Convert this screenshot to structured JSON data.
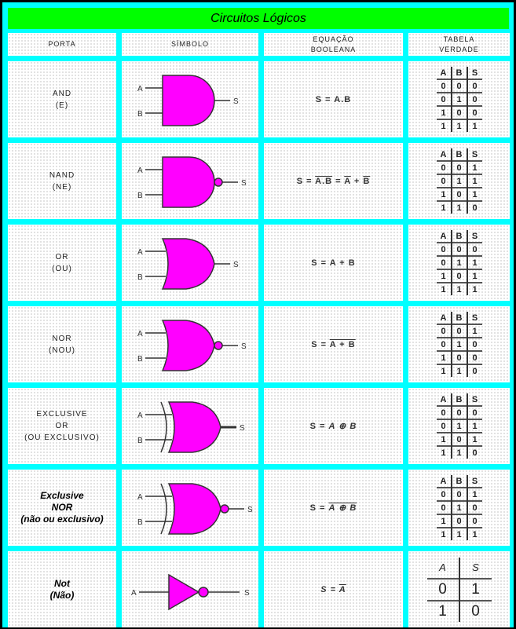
{
  "title": "Circuitos Lógicos",
  "headers": [
    "PORTA",
    "SÍMBOLO",
    "EQUAÇÃO\nBOOLEANA",
    "TABELA\nVERDADE"
  ],
  "colors": {
    "frame": "#00ffff",
    "title_bar": "#00ff00",
    "gate_fill": "#ff00ff"
  },
  "gates": [
    {
      "name": [
        "AND",
        "(E)"
      ],
      "type": "and",
      "inputs": [
        "A",
        "B"
      ],
      "output": "S",
      "equation": [
        {
          "t": "S = A.B"
        }
      ],
      "table": [
        [
          "A",
          "B",
          "S"
        ],
        [
          "0",
          "0",
          "0"
        ],
        [
          "0",
          "1",
          "0"
        ],
        [
          "1",
          "0",
          "0"
        ],
        [
          "1",
          "1",
          "1"
        ]
      ]
    },
    {
      "name": [
        "NAND",
        "(NE)"
      ],
      "type": "nand",
      "inputs": [
        "A",
        "B"
      ],
      "output": "S",
      "equation": [
        {
          "t": "S = "
        },
        {
          "t": "A.B",
          "o": true
        },
        {
          "t": " = "
        },
        {
          "t": "A",
          "o": true
        },
        {
          "t": " + "
        },
        {
          "t": "B",
          "o": true
        }
      ],
      "table": [
        [
          "A",
          "B",
          "S"
        ],
        [
          "0",
          "0",
          "1"
        ],
        [
          "0",
          "1",
          "1"
        ],
        [
          "1",
          "0",
          "1"
        ],
        [
          "1",
          "1",
          "0"
        ]
      ]
    },
    {
      "name": [
        "OR",
        "(OU)"
      ],
      "type": "or",
      "inputs": [
        "A",
        "B"
      ],
      "output": "S",
      "equation": [
        {
          "t": "S = A + B"
        }
      ],
      "table": [
        [
          "A",
          "B",
          "S"
        ],
        [
          "0",
          "0",
          "0"
        ],
        [
          "0",
          "1",
          "1"
        ],
        [
          "1",
          "0",
          "1"
        ],
        [
          "1",
          "1",
          "1"
        ]
      ]
    },
    {
      "name": [
        "NOR",
        "(NOU)"
      ],
      "type": "nor",
      "inputs": [
        "A",
        "B"
      ],
      "output": "S",
      "equation": [
        {
          "t": "S = "
        },
        {
          "t": "A + B",
          "o": true
        }
      ],
      "table": [
        [
          "A",
          "B",
          "S"
        ],
        [
          "0",
          "0",
          "1"
        ],
        [
          "0",
          "1",
          "0"
        ],
        [
          "1",
          "0",
          "0"
        ],
        [
          "1",
          "1",
          "0"
        ]
      ]
    },
    {
      "name": [
        "EXCLUSIVE",
        "OR",
        "(OU EXCLUSIVO)"
      ],
      "type": "xor",
      "inputs": [
        "A",
        "B"
      ],
      "output": "S",
      "equation": [
        {
          "t": "S = "
        },
        {
          "t": "A ⊕ B",
          "i": true
        }
      ],
      "table": [
        [
          "A",
          "B",
          "S"
        ],
        [
          "0",
          "0",
          "0"
        ],
        [
          "0",
          "1",
          "1"
        ],
        [
          "1",
          "0",
          "1"
        ],
        [
          "1",
          "1",
          "0"
        ]
      ]
    },
    {
      "name": [
        "Exclusive",
        "NOR",
        "(não ou exclusivo)"
      ],
      "type": "xnor",
      "bold": true,
      "inputs": [
        "A",
        "B"
      ],
      "output": "S",
      "equation": [
        {
          "t": "S = "
        },
        {
          "t": "A ⊕ B",
          "o": true,
          "i": true
        }
      ],
      "table": [
        [
          "A",
          "B",
          "S"
        ],
        [
          "0",
          "0",
          "1"
        ],
        [
          "0",
          "1",
          "0"
        ],
        [
          "1",
          "0",
          "0"
        ],
        [
          "1",
          "1",
          "1"
        ]
      ]
    },
    {
      "name": [
        "Not",
        "(Não)"
      ],
      "type": "not",
      "bold": true,
      "inputs": [
        "A"
      ],
      "output": "S",
      "equation": [
        {
          "t": "S = ",
          "i": true
        },
        {
          "t": "A",
          "o": true,
          "i": true
        }
      ],
      "table": [
        [
          "A",
          "S"
        ],
        [
          "0",
          "1"
        ],
        [
          "1",
          "0"
        ]
      ]
    }
  ]
}
